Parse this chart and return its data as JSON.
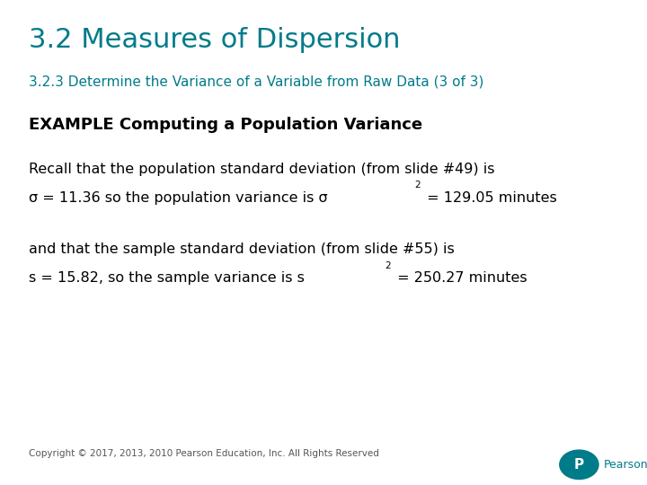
{
  "title": "3.2 Measures of Dispersion",
  "subtitle": "3.2.3 Determine the Variance of a Variable from Raw Data (3 of 3)",
  "title_color": "#007b8a",
  "subtitle_color": "#007b8a",
  "example_heading": "EXAMPLE Computing a Population Variance",
  "para1_line1": "Recall that the population standard deviation (from slide #49) is",
  "para1_line2a": "σ = 11.36 so the population variance is σ",
  "para1_line2b": "2",
  "para1_line2c": " = 129.05 minutes",
  "para2_line1": "and that the sample standard deviation (from slide #55) is",
  "para2_line2a": "s = 15.82, so the sample variance is s",
  "para2_line2b": "2",
  "para2_line2c": " = 250.27 minutes",
  "copyright": "Copyright © 2017, 2013, 2010 Pearson Education, Inc. All Rights Reserved",
  "background_color": "#ffffff",
  "body_text_color": "#000000",
  "body_fontsize": 11.5,
  "title_fontsize": 22,
  "subtitle_fontsize": 11,
  "example_fontsize": 13
}
